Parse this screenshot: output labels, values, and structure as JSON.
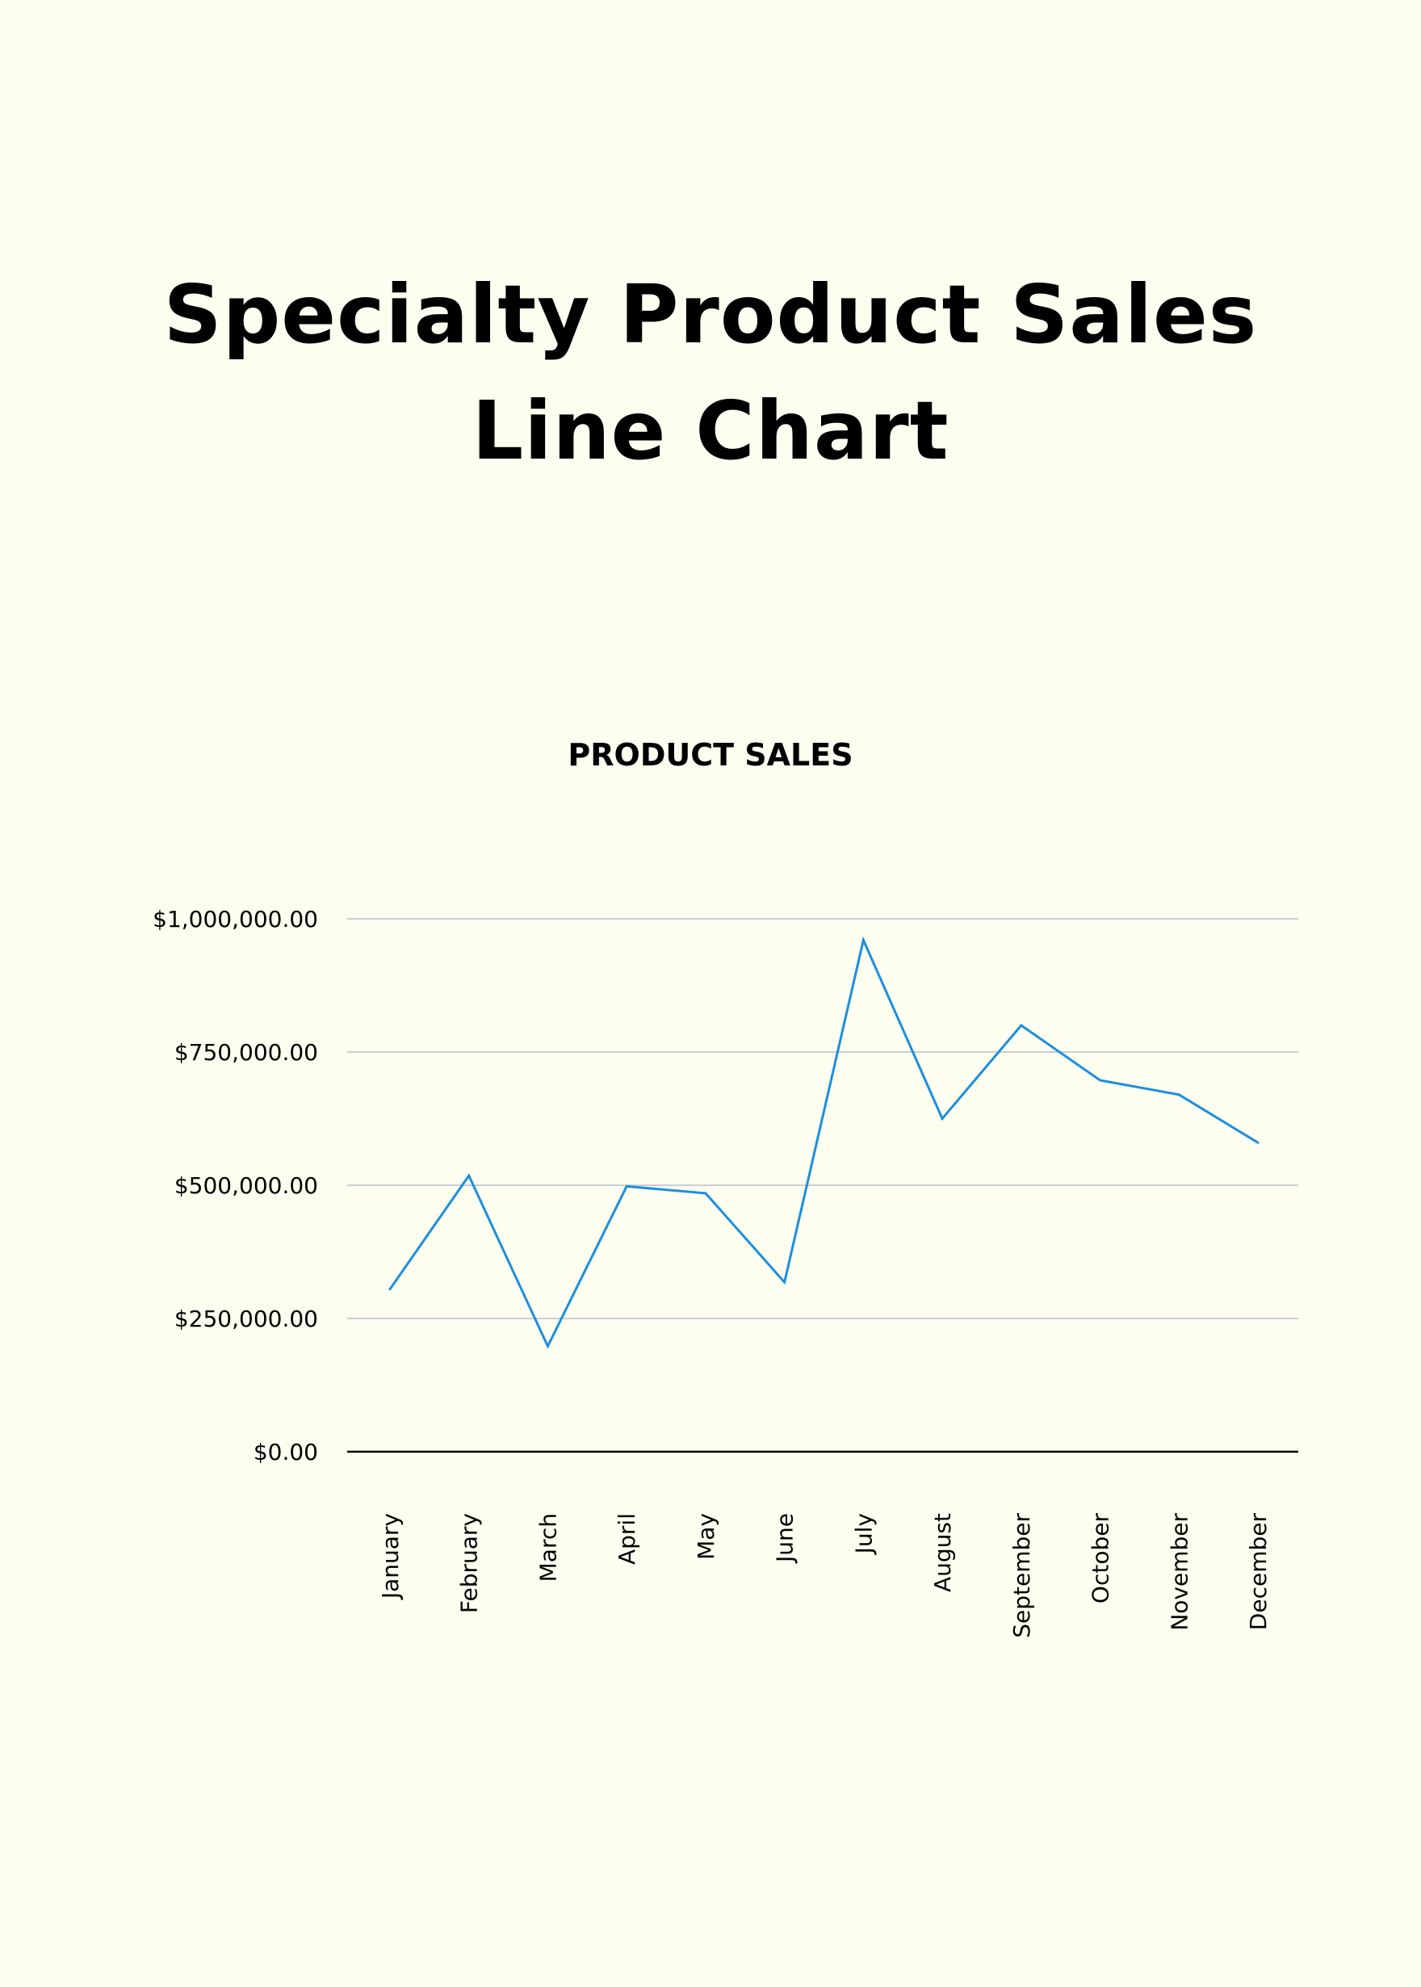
{
  "page": {
    "title_line1": "Specialty Product Sales",
    "title_line2": "Line Chart"
  },
  "chart_data": {
    "type": "line",
    "title": "PRODUCT SALES",
    "xlabel": "",
    "ylabel": "",
    "categories": [
      "January",
      "February",
      "March",
      "April",
      "May",
      "June",
      "July",
      "August",
      "September",
      "October",
      "November",
      "December"
    ],
    "series": [
      {
        "values": [
          305000,
          518000,
          198000,
          498000,
          485000,
          318000,
          960000,
          625000,
          800000,
          697000,
          670000,
          580000
        ],
        "color": "#1a8fe0"
      }
    ],
    "ylim": [
      0,
      1000000
    ],
    "yticks": [
      0,
      250000,
      500000,
      750000,
      1000000
    ],
    "ytick_labels": [
      "$0.00",
      "$250,000.00",
      "$500,000.00",
      "$750,000.00",
      "$1,000,000.00"
    ],
    "grid": true,
    "legend": "none",
    "gridline_color": "#c9cdd3",
    "axis_color": "#000000"
  }
}
